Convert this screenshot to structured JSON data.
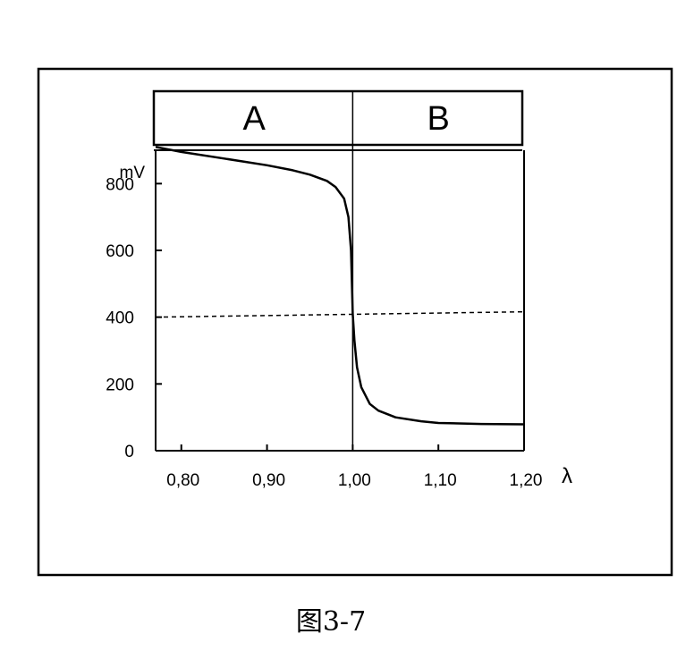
{
  "caption": "图3-7",
  "chart_data": {
    "type": "line",
    "x_symbol": "λ",
    "y_unit": "mV",
    "xlim": [
      0.77,
      1.2
    ],
    "ylim": [
      0,
      900
    ],
    "x_ticks": [
      {
        "value": 0.8,
        "label": "0,80"
      },
      {
        "value": 0.9,
        "label": "0,90"
      },
      {
        "value": 1.0,
        "label": "1,00"
      },
      {
        "value": 1.1,
        "label": "1,10"
      },
      {
        "value": 1.2,
        "label": "1,20"
      }
    ],
    "y_ticks": [
      {
        "value": 0,
        "label": "0"
      },
      {
        "value": 200,
        "label": "200"
      },
      {
        "value": 400,
        "label": "400"
      },
      {
        "value": 600,
        "label": "600"
      },
      {
        "value": 800,
        "label": "800"
      }
    ],
    "regions": [
      {
        "label": "A",
        "x_range": [
          0.77,
          1.0
        ]
      },
      {
        "label": "B",
        "x_range": [
          1.0,
          1.2
        ]
      }
    ],
    "reference_line": {
      "axis": "y",
      "value": 400,
      "style": "dashed"
    },
    "divider_line": {
      "axis": "x",
      "value": 1.0,
      "style": "solid"
    },
    "grid": false,
    "series": [
      {
        "x": [
          0.77,
          0.8,
          0.85,
          0.9,
          0.93,
          0.95,
          0.97,
          0.98,
          0.99,
          0.995,
          0.998,
          1.0,
          1.002,
          1.005,
          1.01,
          1.02,
          1.03,
          1.05,
          1.08,
          1.1,
          1.15,
          1.2
        ],
        "y": [
          910,
          895,
          875,
          855,
          840,
          827,
          808,
          790,
          755,
          700,
          600,
          410,
          330,
          250,
          190,
          140,
          120,
          100,
          88,
          83,
          80,
          79
        ]
      }
    ]
  }
}
